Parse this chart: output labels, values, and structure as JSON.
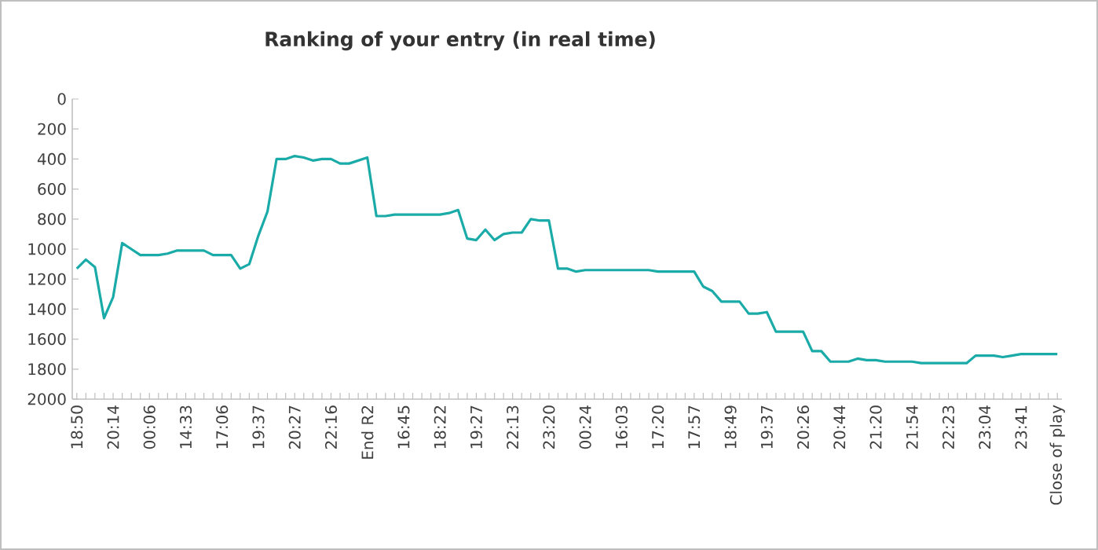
{
  "chart_data": {
    "type": "line",
    "title": "Ranking of your entry (in real time)",
    "categories": [
      "18:50",
      null,
      null,
      null,
      "20:14",
      null,
      null,
      null,
      "00:06",
      null,
      null,
      null,
      "14:33",
      null,
      null,
      null,
      "17:06",
      null,
      null,
      null,
      "19:37",
      null,
      null,
      null,
      "20:27",
      null,
      null,
      null,
      "22:16",
      null,
      null,
      null,
      "End R2",
      null,
      null,
      null,
      "16:45",
      null,
      null,
      null,
      "18:22",
      null,
      null,
      null,
      "19:27",
      null,
      null,
      null,
      "22:13",
      null,
      null,
      null,
      "23:20",
      null,
      null,
      null,
      "00:24",
      null,
      null,
      null,
      "16:03",
      null,
      null,
      null,
      "17:20",
      null,
      null,
      null,
      "17:57",
      null,
      null,
      null,
      "18:49",
      null,
      null,
      null,
      "19:37",
      null,
      null,
      null,
      "20:26",
      null,
      null,
      null,
      "20:44",
      null,
      null,
      null,
      "21:20",
      null,
      null,
      null,
      "21:54",
      null,
      null,
      null,
      "22:23",
      null,
      null,
      null,
      "23:04",
      null,
      null,
      null,
      "23:41",
      null,
      null,
      null,
      "Close of play"
    ],
    "values": [
      1130,
      1070,
      1120,
      1460,
      1320,
      960,
      1000,
      1040,
      1040,
      1040,
      1030,
      1010,
      1010,
      1010,
      1010,
      1040,
      1040,
      1040,
      1130,
      1100,
      910,
      750,
      400,
      400,
      380,
      390,
      410,
      400,
      400,
      430,
      430,
      410,
      390,
      780,
      780,
      770,
      770,
      770,
      770,
      770,
      770,
      760,
      740,
      930,
      940,
      870,
      940,
      900,
      890,
      890,
      800,
      810,
      810,
      1130,
      1130,
      1150,
      1140,
      1140,
      1140,
      1140,
      1140,
      1140,
      1140,
      1140,
      1150,
      1150,
      1150,
      1150,
      1150,
      1250,
      1280,
      1350,
      1350,
      1350,
      1430,
      1430,
      1420,
      1550,
      1550,
      1550,
      1550,
      1680,
      1680,
      1750,
      1750,
      1750,
      1730,
      1740,
      1740,
      1750,
      1750,
      1750,
      1750,
      1760,
      1760,
      1760,
      1760,
      1760,
      1760,
      1710,
      1710,
      1710,
      1720,
      1710,
      1700,
      1700,
      1700,
      1700,
      1700
    ],
    "color": "#1aaba8",
    "ylim": [
      2000,
      0
    ],
    "yticks": [
      0,
      200,
      400,
      600,
      800,
      1000,
      1200,
      1400,
      1600,
      1800,
      2000
    ]
  }
}
